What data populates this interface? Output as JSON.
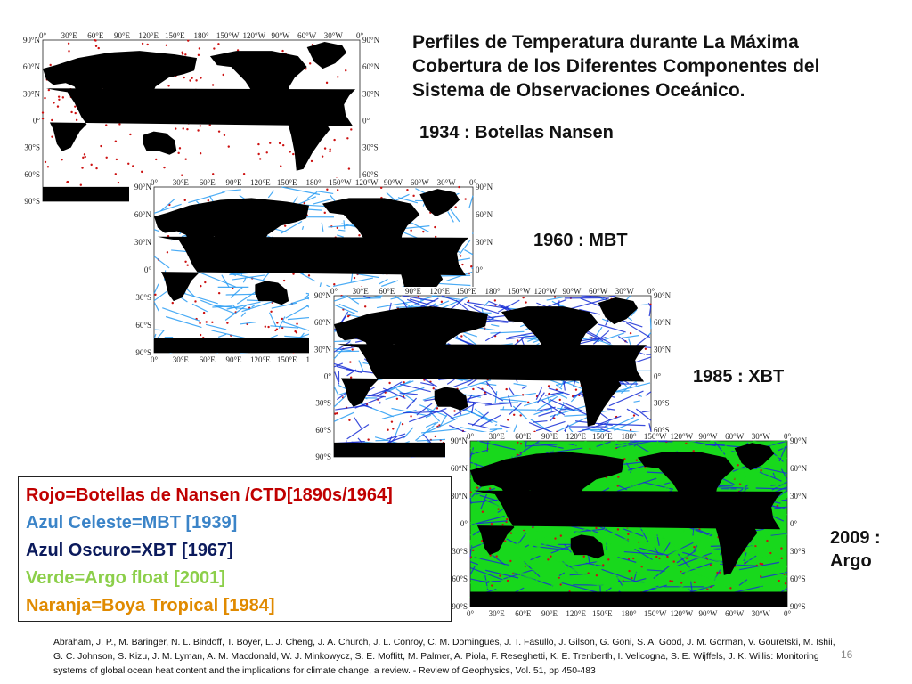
{
  "slide": {
    "title": "Perfiles de Temperatura durante La Máxima Cobertura  de los Diferentes Componentes del Sistema de Observaciones Oceánico.",
    "page_number": "16",
    "reference": "Abraham, J. P., M. Baringer, N. L. Bindoff, T. Boyer, L. J. Cheng, J. A. Church, J. L. Conroy, C. M. Domingues, J. T. Fasullo, J. Gilson, G. Goni, S. A. Good, J. M. Gorman, V. Gouretski, M. Ishii, G. C. Johnson, S. Kizu, J. M. Lyman, A. M. Macdonald, W. J. Minkowycz, S. E. Moffitt, M. Palmer, A. Piola, F. Reseghetti, K. E. Trenberth, I. Velicogna, S. E. Wijffels, J. K. Willis: Monitoring systems of global ocean heat content and the implications for climate change, a review. - Review of Geophysics, Vol. 51, pp 450-483"
  },
  "maps": [
    {
      "label": "1934 : Botellas Nansen",
      "colors": [
        "#cc1111"
      ],
      "fill": "#ffffff",
      "show_top_ticks": true,
      "show_bottom_ticks": false
    },
    {
      "label": "1960 : MBT",
      "colors": [
        "#cc1111",
        "#2a9df4"
      ],
      "fill": "#ffffff",
      "show_top_ticks": true,
      "show_bottom_ticks": true
    },
    {
      "label": "1985 : XBT",
      "colors": [
        "#cc1111",
        "#2a9df4",
        "#1a2fd6"
      ],
      "fill": "#ffffff",
      "show_top_ticks": true,
      "show_bottom_ticks": false
    },
    {
      "label": "2009 : Argo",
      "colors": [
        "#cc1111",
        "#1a2fd6",
        "#18d81c"
      ],
      "fill": "#18d81c",
      "show_top_ticks": true,
      "show_bottom_ticks": true
    }
  ],
  "axes": {
    "lon_ticks": [
      "0°",
      "30°E",
      "60°E",
      "90°E",
      "120°E",
      "150°E",
      "180°",
      "150°W",
      "120°W",
      "90°W",
      "60°W",
      "30°W",
      "0°"
    ],
    "lat_ticks": [
      "90°N",
      "60°N",
      "30°N",
      "0°",
      "30°S",
      "60°S",
      "90°S"
    ]
  },
  "legend": {
    "items": [
      {
        "text": "Rojo=Botellas de Nansen /CTD[1890s/1964]",
        "color": "#c00000"
      },
      {
        "text": "Azul Celeste=MBT [1939]",
        "color": "#3b84c8"
      },
      {
        "text": "Azul Oscuro=XBT [1967]",
        "color": "#0b1a5c"
      },
      {
        "text": "Verde=Argo float [2001]",
        "color": "#8ccf4a"
      },
      {
        "text": "Naranja=Boya Tropical [1984]",
        "color": "#e08a00"
      }
    ]
  }
}
